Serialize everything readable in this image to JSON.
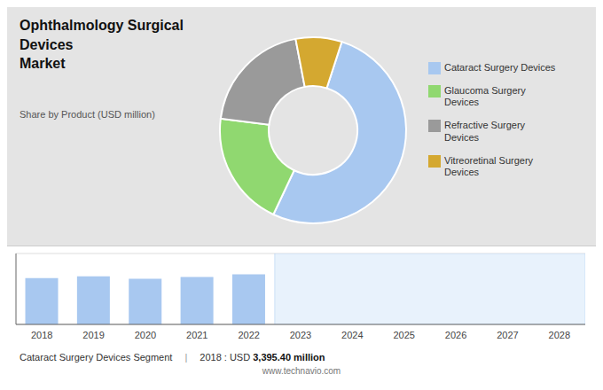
{
  "chart_data": [
    {
      "type": "pie",
      "title": "Ophthalmology Surgical Devices\nMarket",
      "subtitle": "Share by Product (USD million)",
      "categories": [
        "Cataract Surgery Devices",
        "Glaucoma Surgery\nDevices",
        "Refractive Surgery\nDevices",
        "Vitreoretinal Surgery\nDevices"
      ],
      "values": [
        52,
        20,
        20,
        8
      ],
      "colors": [
        "#a8c8f0",
        "#90d870",
        "#9a9a9a",
        "#d4a830"
      ],
      "legend": "right"
    },
    {
      "type": "bar",
      "categories": [
        "2018",
        "2019",
        "2020",
        "2021",
        "2022",
        "2023",
        "2024",
        "2025",
        "2026",
        "2027",
        "2028"
      ],
      "values": [
        3395.4,
        3520,
        3350,
        3480,
        3680,
        null,
        null,
        null,
        null,
        null,
        null
      ],
      "color": "#a8c8f0",
      "ylim": [
        0,
        5200
      ],
      "yticks": [
        0,
        1000,
        2000,
        3000,
        4000,
        5000
      ],
      "grid": true,
      "tick_labels": "x",
      "annotations": [
        "Cataract Surgery Devices Segment",
        "|",
        "2018 : USD ",
        "3,395.40 million",
        "www.technavio.com"
      ]
    }
  ]
}
